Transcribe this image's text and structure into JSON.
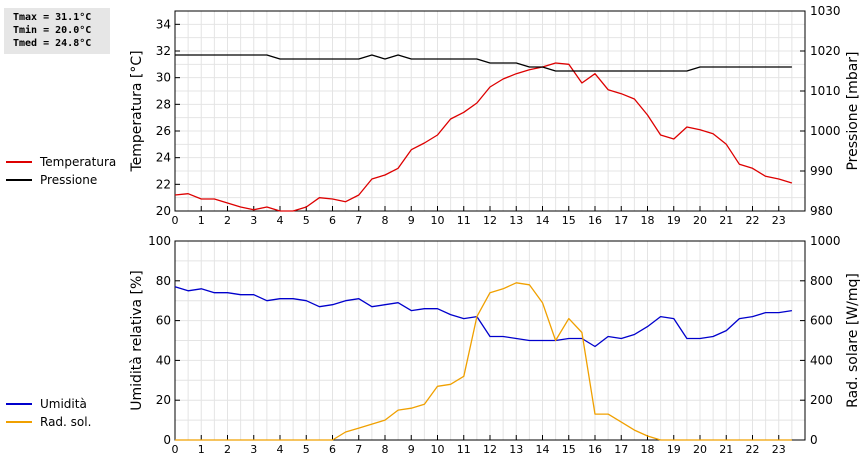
{
  "stats": {
    "tmax": "Tmax = 31.1°C",
    "tmin": "Tmin = 20.0°C",
    "tmed": "Tmed = 24.8°C"
  },
  "legend_top": [
    {
      "label": "Temperatura",
      "color": "#dd0000"
    },
    {
      "label": "Pressione",
      "color": "#000000"
    }
  ],
  "legend_bottom": [
    {
      "label": "Umidità",
      "color": "#0000cc"
    },
    {
      "label": "Rad. sol.",
      "color": "#f0a000"
    }
  ],
  "chart_data": [
    {
      "type": "line",
      "xlim": [
        0,
        24
      ],
      "xticks": [
        0,
        1,
        2,
        3,
        4,
        5,
        6,
        7,
        8,
        9,
        10,
        11,
        12,
        13,
        14,
        15,
        16,
        17,
        18,
        19,
        20,
        21,
        22,
        23
      ],
      "grid": true,
      "ylabel": "Temperatura [°C]",
      "ylim": [
        20,
        35
      ],
      "yticks": [
        20,
        22,
        24,
        26,
        28,
        30,
        32,
        34
      ],
      "y2label": "Pressione [mbar]",
      "y2lim": [
        980,
        1030
      ],
      "y2ticks": [
        980,
        990,
        1000,
        1010,
        1020,
        1030
      ],
      "series": [
        {
          "name": "Temperatura",
          "axis": "left",
          "color": "#dd0000",
          "x": [
            0,
            0.5,
            1,
            1.5,
            2,
            2.5,
            3,
            3.5,
            4,
            4.5,
            5,
            5.5,
            6,
            6.5,
            7,
            7.5,
            8,
            8.5,
            9,
            9.5,
            10,
            10.5,
            11,
            11.5,
            12,
            12.5,
            13,
            13.5,
            14,
            14.5,
            15,
            15.5,
            16,
            16.5,
            17,
            17.5,
            18,
            18.5,
            19,
            19.5,
            20,
            20.5,
            21,
            21.5,
            22,
            22.5,
            23,
            23.5
          ],
          "y": [
            21.2,
            21.3,
            20.9,
            20.9,
            20.6,
            20.3,
            20.1,
            20.3,
            20.0,
            20.0,
            20.3,
            21.0,
            20.9,
            20.7,
            21.2,
            22.4,
            22.7,
            23.2,
            24.6,
            25.1,
            25.7,
            26.9,
            27.4,
            28.1,
            29.3,
            29.9,
            30.3,
            30.6,
            30.8,
            31.1,
            31.0,
            29.6,
            30.3,
            29.1,
            28.8,
            28.4,
            27.2,
            25.7,
            25.4,
            26.3,
            26.1,
            25.8,
            25.0,
            23.5,
            23.2,
            22.6,
            22.4,
            22.1
          ]
        },
        {
          "name": "Pressione",
          "axis": "right",
          "color": "#000000",
          "x": [
            0,
            0.5,
            1,
            1.5,
            2,
            2.5,
            3,
            3.5,
            4,
            4.5,
            5,
            5.5,
            6,
            6.5,
            7,
            7.5,
            8,
            8.5,
            9,
            9.5,
            10,
            10.5,
            11,
            11.5,
            12,
            12.5,
            13,
            13.5,
            14,
            14.5,
            15,
            15.5,
            16,
            16.5,
            17,
            17.5,
            18,
            18.5,
            19,
            19.5,
            20,
            20.5,
            21,
            21.5,
            22,
            22.5,
            23,
            23.5
          ],
          "y": [
            1019,
            1019,
            1019,
            1019,
            1019,
            1019,
            1019,
            1019,
            1018,
            1018,
            1018,
            1018,
            1018,
            1018,
            1018,
            1019,
            1018,
            1019,
            1018,
            1018,
            1018,
            1018,
            1018,
            1018,
            1017,
            1017,
            1017,
            1016,
            1016,
            1015,
            1015,
            1015,
            1015,
            1015,
            1015,
            1015,
            1015,
            1015,
            1015,
            1015,
            1016,
            1016,
            1016,
            1016,
            1016,
            1016,
            1016,
            1016
          ]
        }
      ]
    },
    {
      "type": "line",
      "xlim": [
        0,
        24
      ],
      "xticks": [
        0,
        1,
        2,
        3,
        4,
        5,
        6,
        7,
        8,
        9,
        10,
        11,
        12,
        13,
        14,
        15,
        16,
        17,
        18,
        19,
        20,
        21,
        22,
        23
      ],
      "grid": true,
      "ylabel": "Umidità relativa [%]",
      "ylim": [
        0,
        100
      ],
      "yticks": [
        0,
        20,
        40,
        60,
        80,
        100
      ],
      "y2label": "Rad. solare [W/mq]",
      "y2lim": [
        0,
        1000
      ],
      "y2ticks": [
        0,
        200,
        400,
        600,
        800,
        1000
      ],
      "series": [
        {
          "name": "Umidità",
          "axis": "left",
          "color": "#0000cc",
          "x": [
            0,
            0.5,
            1,
            1.5,
            2,
            2.5,
            3,
            3.5,
            4,
            4.5,
            5,
            5.5,
            6,
            6.5,
            7,
            7.5,
            8,
            8.5,
            9,
            9.5,
            10,
            10.5,
            11,
            11.5,
            12,
            12.5,
            13,
            13.5,
            14,
            14.5,
            15,
            15.5,
            16,
            16.5,
            17,
            17.5,
            18,
            18.5,
            19,
            19.5,
            20,
            20.5,
            21,
            21.5,
            22,
            22.5,
            23,
            23.5
          ],
          "y": [
            77,
            75,
            76,
            74,
            74,
            73,
            73,
            70,
            71,
            71,
            70,
            67,
            68,
            70,
            71,
            67,
            68,
            69,
            65,
            66,
            66,
            63,
            61,
            62,
            52,
            52,
            51,
            50,
            50,
            50,
            51,
            51,
            47,
            52,
            51,
            53,
            57,
            62,
            61,
            51,
            51,
            52,
            55,
            61,
            62,
            64,
            64,
            65
          ]
        },
        {
          "name": "Rad. sol.",
          "axis": "right",
          "color": "#f0a000",
          "x": [
            0,
            0.5,
            1,
            1.5,
            2,
            2.5,
            3,
            3.5,
            4,
            4.5,
            5,
            5.5,
            6,
            6.5,
            7,
            7.5,
            8,
            8.5,
            9,
            9.5,
            10,
            10.5,
            11,
            11.5,
            12,
            12.5,
            13,
            13.5,
            14,
            14.5,
            15,
            15.5,
            16,
            16.5,
            17,
            17.5,
            18,
            18.5,
            19,
            19.5,
            20,
            20.5,
            21,
            21.5,
            22,
            22.5,
            23,
            23.5
          ],
          "y": [
            0,
            0,
            0,
            0,
            0,
            0,
            0,
            0,
            0,
            0,
            0,
            0,
            0,
            40,
            60,
            80,
            100,
            150,
            160,
            180,
            270,
            280,
            320,
            620,
            740,
            760,
            790,
            780,
            690,
            500,
            610,
            540,
            130,
            130,
            90,
            50,
            20,
            0,
            0,
            0,
            0,
            0,
            0,
            0,
            0,
            0,
            0,
            0
          ]
        }
      ]
    }
  ]
}
